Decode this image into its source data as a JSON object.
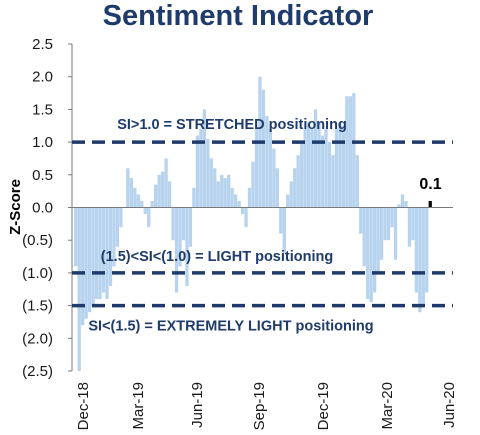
{
  "chart_data": {
    "type": "bar",
    "title": "Sentiment Indicator",
    "ylabel": "Z-Score",
    "ylim": [
      -2.5,
      2.5
    ],
    "yticks": [
      {
        "value": 2.5,
        "label": "2.5"
      },
      {
        "value": 2.0,
        "label": "2.0"
      },
      {
        "value": 1.5,
        "label": "1.5"
      },
      {
        "value": 1.0,
        "label": "1.0"
      },
      {
        "value": 0.5,
        "label": "0.5"
      },
      {
        "value": 0.0,
        "label": "0.0"
      },
      {
        "value": -0.5,
        "label": "(0.5)"
      },
      {
        "value": -1.0,
        "label": "(1.0)"
      },
      {
        "value": -1.5,
        "label": "(1.5)"
      },
      {
        "value": -2.0,
        "label": "(2.0)"
      },
      {
        "value": -2.5,
        "label": "(2.5)"
      }
    ],
    "xticks": [
      "Dec-18",
      "Mar-19",
      "Jun-19",
      "Sep-19",
      "Dec-19",
      "Mar-20",
      "Jun-20"
    ],
    "grid": false,
    "bar_color": "#b7d3ee",
    "threshold_color": "#1f3b6b",
    "thresholds": [
      {
        "value": 1.0,
        "label": "SI>1.0 = STRETCHED positioning"
      },
      {
        "value": -1.0,
        "label": "(1.5)<SI<(1.0) = LIGHT positioning"
      },
      {
        "value": -1.5,
        "label": "SI<(1.5) = EXTREMELY LIGHT positioning"
      }
    ],
    "last_value_label": "0.1",
    "values": [
      -0.9,
      -2.5,
      -1.8,
      -1.7,
      -1.6,
      -1.5,
      -1.4,
      -1.4,
      -1.3,
      -1.4,
      -1.2,
      -0.9,
      -0.6,
      -0.3,
      0.0,
      0.6,
      0.45,
      0.3,
      0.2,
      0.1,
      -0.1,
      -0.3,
      0.1,
      0.35,
      0.5,
      0.55,
      0.75,
      0.4,
      -0.5,
      -1.3,
      -0.9,
      -0.5,
      -1.2,
      -0.6,
      0.3,
      1.1,
      1.2,
      1.5,
      1.05,
      0.75,
      0.6,
      0.4,
      0.5,
      0.45,
      0.5,
      0.3,
      0.2,
      0.1,
      -0.1,
      -0.3,
      0.3,
      0.7,
      1.2,
      2.0,
      1.8,
      1.4,
      1.2,
      0.9,
      0.6,
      -0.4,
      -0.7,
      0.2,
      0.4,
      0.6,
      0.8,
      1.0,
      1.2,
      1.3,
      1.2,
      1.5,
      1.3,
      1.1,
      1.2,
      1.0,
      0.8,
      1.2,
      1.3,
      1.25,
      1.7,
      1.7,
      1.75,
      0.8,
      -0.4,
      -0.9,
      -1.4,
      -1.45,
      -1.3,
      -1.0,
      -0.8,
      -0.5,
      -0.5,
      -0.3,
      -0.8,
      0.05,
      0.2,
      0.1,
      -0.6,
      -0.5,
      -1.3,
      -1.6,
      -1.5,
      -1.3,
      0.1
    ]
  }
}
